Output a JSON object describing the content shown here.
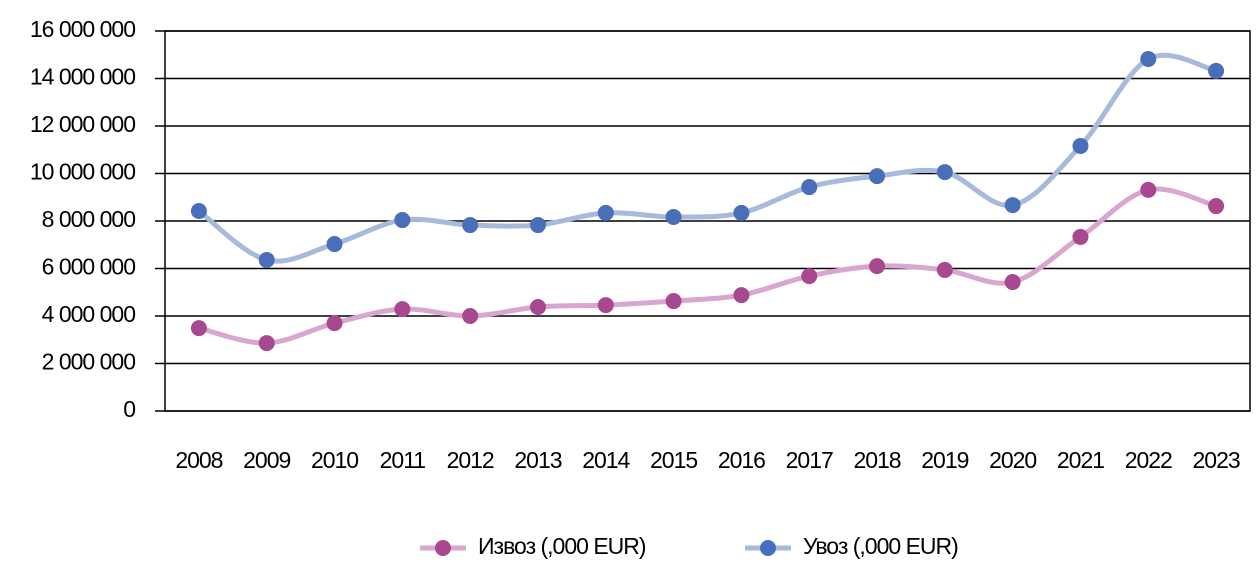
{
  "chart_data": {
    "type": "line",
    "categories": [
      "2008",
      "2009",
      "2010",
      "2011",
      "2012",
      "2013",
      "2014",
      "2015",
      "2016",
      "2017",
      "2018",
      "2019",
      "2020",
      "2021",
      "2022",
      "2023"
    ],
    "series": [
      {
        "name": "Извоз (,000 EUR)",
        "color": "#a8488f",
        "line_color": "#d9a6cf",
        "values": [
          3490000,
          2860000,
          3700000,
          4290000,
          4000000,
          4380000,
          4460000,
          4630000,
          4880000,
          5680000,
          6100000,
          5940000,
          5430000,
          7330000,
          9310000,
          8630000
        ]
      },
      {
        "name": "Увоз (,000 EUR)",
        "color": "#4a6fba",
        "line_color": "#a7badb",
        "values": [
          8420000,
          6360000,
          7030000,
          8040000,
          7830000,
          7830000,
          8340000,
          8170000,
          8340000,
          9430000,
          9890000,
          10060000,
          8670000,
          11160000,
          14820000,
          14320000
        ]
      }
    ],
    "ylim": [
      0,
      16000000
    ],
    "yticks": [
      0,
      {
        "value": 2000000,
        "label": "2 000 000"
      },
      {
        "value": 4000000,
        "label": "4 000 000"
      },
      {
        "value": 6000000,
        "label": "6 000 000"
      },
      {
        "value": 8000000,
        "label": "8 000 000"
      },
      {
        "value": 10000000,
        "label": "10 000 000"
      },
      {
        "value": 12000000,
        "label": "12 000 000"
      },
      {
        "value": 14000000,
        "label": "14 000 000"
      },
      {
        "value": 16000000,
        "label": "16 000 000"
      }
    ],
    "grid": true,
    "legend": "bottom",
    "smooth": true
  }
}
